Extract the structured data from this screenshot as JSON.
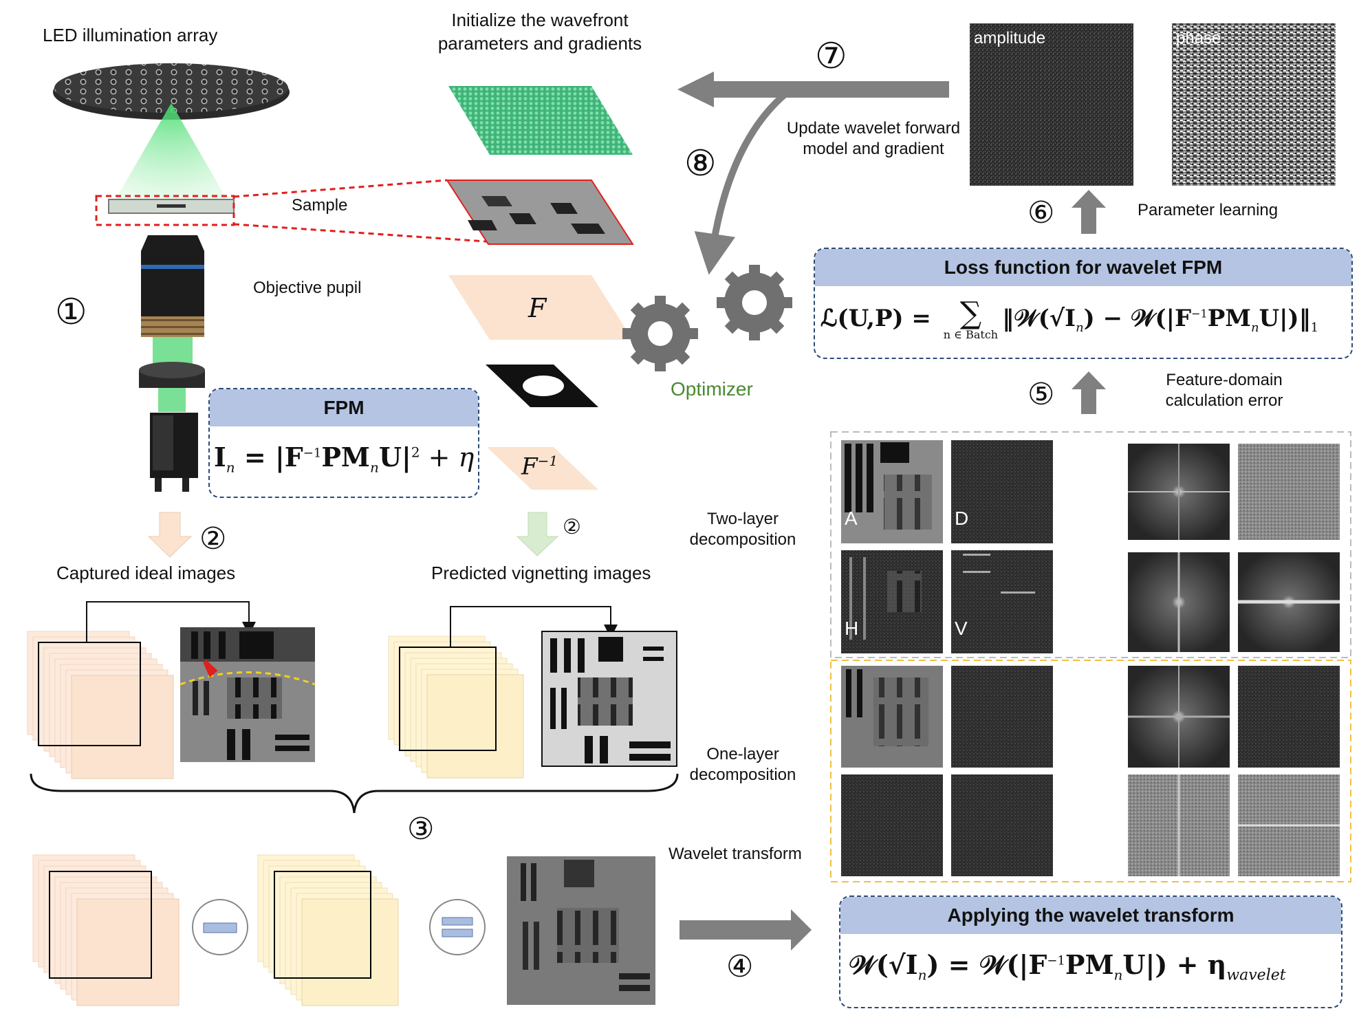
{
  "labels": {
    "led_array": "LED illumination array",
    "init_line1": "Initialize the wavefront",
    "init_line2": "parameters and gradients",
    "sample": "Sample",
    "objective_pupil": "Objective pupil",
    "captured": "Captured ideal images",
    "predicted": "Predicted vignetting images",
    "update_line1": "Update wavelet forward",
    "update_line2": "model and gradient",
    "optimizer": "Optimizer",
    "amplitude": "amplitude",
    "phase": "phase",
    "param_learning": "Parameter learning",
    "feature_line1": "Feature-domain",
    "feature_line2": "calculation error",
    "two_layer_line1": "Two-layer",
    "two_layer_line2": "decomposition",
    "one_layer_line1": "One-layer",
    "one_layer_line2": "decomposition",
    "wavelet_transform": "Wavelet transform",
    "op_F": "F",
    "op_Finv": "F",
    "op_Finv_sup": "−1"
  },
  "steps": {
    "s1": "①",
    "s2a": "②",
    "s2b": "②",
    "s3": "③",
    "s4": "④",
    "s5": "⑤",
    "s6": "⑥",
    "s7": "⑦",
    "s8": "⑧"
  },
  "tiles": {
    "A": "A",
    "D": "D",
    "H": "H",
    "V": "V"
  },
  "fpm_box": {
    "title": "FPM",
    "eq_I": "I",
    "eq_n": "n",
    "eq_mid": " = |F",
    "eq_sup": "−1",
    "eq_pm": "PM",
    "eq_n2": "n",
    "eq_u": "U|",
    "eq_sq": "2",
    "eq_end": " + η"
  },
  "loss_box": {
    "title": "Loss function for wavelet FPM",
    "lhs": "ℒ(U,P) = ",
    "sum": "∑",
    "sum_sub": "n ∈ Batch",
    "rhs_a": "‖𝒲(√I",
    "rhs_n": "n",
    "rhs_b": ") − 𝒲(|F",
    "rhs_sup": "−1",
    "rhs_c": "PM",
    "rhs_n2": "n",
    "rhs_d": "U|)‖",
    "rhs_sub": "1"
  },
  "wavelet_box": {
    "title": "Applying the wavelet transform",
    "lhs_a": "𝒲(√I",
    "lhs_n": "n",
    "lhs_b": ") = 𝒲(|F",
    "sup": "−1",
    "mid": "PM",
    "n2": "n",
    "end": "U|) + η",
    "sub": "wavelet"
  },
  "colors": {
    "box_head": "#b4c4e2",
    "box_border": "#2b4a7a",
    "arrow_gray": "#808080",
    "optimizer_green": "#4a8a30",
    "peach": "#fbe3cf",
    "cream": "#fdf0c8",
    "green_arrow": "#d8ecd0",
    "red": "#e0201c",
    "yellow_dash": "#f0c040"
  }
}
